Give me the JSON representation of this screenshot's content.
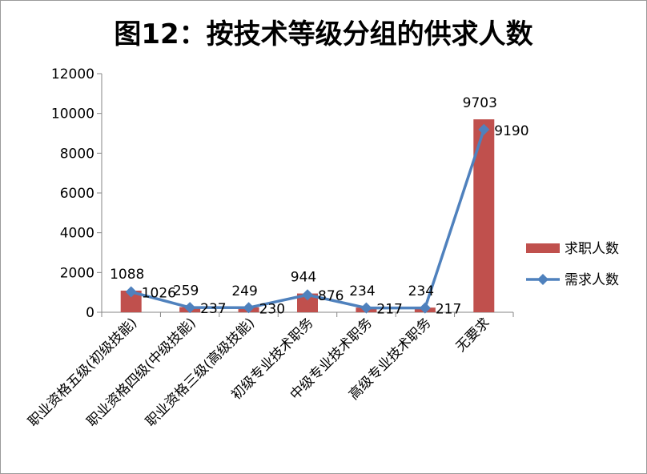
{
  "chart_data": {
    "type": "bar",
    "title": "图12：按技术等级分组的供求人数",
    "categories": [
      "职业资格五级(初级技能)",
      "职业资格四级(中级技能)",
      "职业资格三级(高级技能)",
      "初级专业技术职务",
      "中级专业技术职务",
      "高级专业技术职务",
      "无要求"
    ],
    "series": [
      {
        "name": "求职人数",
        "type": "bar",
        "color": "#c0504d",
        "values": [
          1088,
          259,
          249,
          944,
          234,
          234,
          9703
        ]
      },
      {
        "name": "需求人数",
        "type": "line",
        "color": "#4f81bd",
        "marker": "diamond",
        "values": [
          1026,
          237,
          230,
          876,
          217,
          217,
          9190
        ]
      }
    ],
    "ylim": [
      0,
      12000
    ],
    "yticks": [
      0,
      2000,
      4000,
      6000,
      8000,
      10000,
      12000
    ],
    "grid": false,
    "legend": "right",
    "xlabel": "",
    "ylabel": ""
  }
}
